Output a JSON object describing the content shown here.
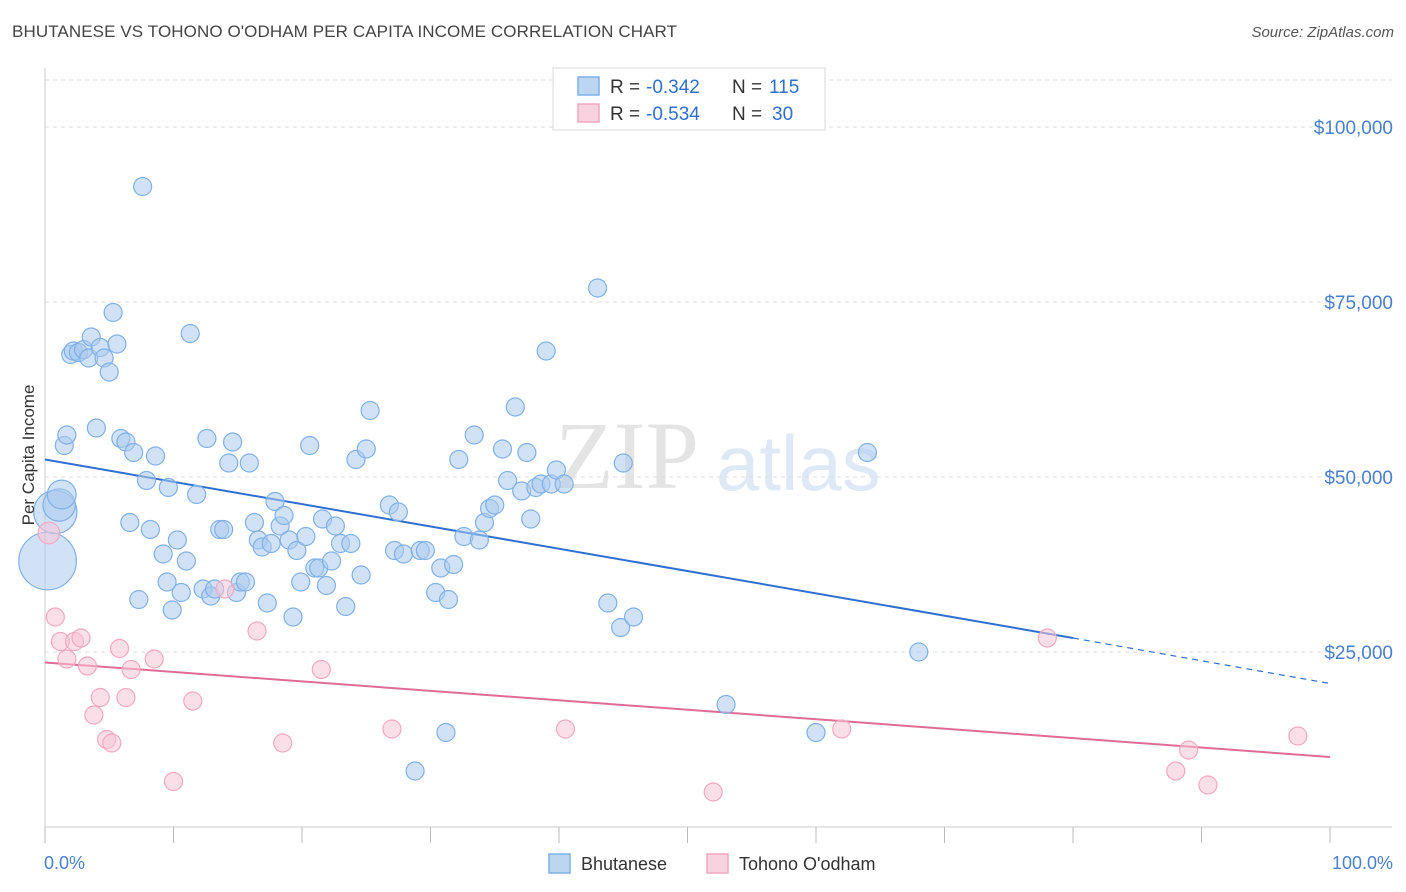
{
  "title": "BHUTANESE VS TOHONO O'ODHAM PER CAPITA INCOME CORRELATION CHART",
  "source": "Source: ZipAtlas.com",
  "watermark": {
    "zip": "ZIP",
    "atlas": "atlas"
  },
  "legend": {
    "r_label": "R =",
    "n_label": "N =",
    "rows": [
      {
        "series": "Bhutanese",
        "r": "-0.342",
        "n": "115"
      },
      {
        "series": "Tohono O'odham",
        "r": "-0.534",
        "n": "30"
      }
    ]
  },
  "chart_data": {
    "type": "scatter",
    "title": "BHUTANESE VS TOHONO O'ODHAM PER CAPITA INCOME CORRELATION CHART",
    "xlabel": "",
    "ylabel": "Per Capita Income",
    "xlim": [
      0,
      100
    ],
    "ylim": [
      0,
      105000
    ],
    "x_tick_labels": [
      "0.0%",
      "100.0%"
    ],
    "y_ticks": [
      25000,
      50000,
      75000,
      100000
    ],
    "y_tick_labels": [
      "$25,000",
      "$50,000",
      "$75,000",
      "$100,000"
    ],
    "grid": "horizontal dashed",
    "legend_position": "top-center",
    "colors": {
      "Bhutanese": "#7fb0e6",
      "Tohono O'odham": "#f2a7c0",
      "Bhutanese_line": "#2f6fd0",
      "Tohono O'odham_line": "#e06c96"
    },
    "series": [
      {
        "name": "Bhutanese",
        "trend": {
          "x0": 0,
          "y0": 52500,
          "x1": 80,
          "y1": 27000,
          "dashed_to": 100,
          "dashed_y": 20500
        },
        "points": [
          [
            0.2,
            38000,
            32
          ],
          [
            0.8,
            45000,
            24
          ],
          [
            1.1,
            46000,
            18
          ],
          [
            1.3,
            47500,
            16
          ],
          [
            1.5,
            54500,
            10
          ],
          [
            1.7,
            56000,
            10
          ],
          [
            2.0,
            67500,
            10
          ],
          [
            2.2,
            68000,
            10
          ],
          [
            2.6,
            67800,
            10
          ],
          [
            3.0,
            68200,
            10
          ],
          [
            3.4,
            67000,
            10
          ],
          [
            3.6,
            70000,
            10
          ],
          [
            4.0,
            57000,
            10
          ],
          [
            4.3,
            68500,
            10
          ],
          [
            4.6,
            67000,
            10
          ],
          [
            5.0,
            65000,
            10
          ],
          [
            5.3,
            73500,
            10
          ],
          [
            5.6,
            69000,
            10
          ],
          [
            5.9,
            55500,
            10
          ],
          [
            6.3,
            55000,
            10
          ],
          [
            6.6,
            43500,
            10
          ],
          [
            6.9,
            53500,
            10
          ],
          [
            7.3,
            32500,
            10
          ],
          [
            7.6,
            91500,
            10
          ],
          [
            7.9,
            49500,
            10
          ],
          [
            8.2,
            42500,
            10
          ],
          [
            8.6,
            53000,
            10
          ],
          [
            9.2,
            39000,
            10
          ],
          [
            9.6,
            48500,
            10
          ],
          [
            9.9,
            31000,
            10
          ],
          [
            10.3,
            41000,
            10
          ],
          [
            10.6,
            33500,
            10
          ],
          [
            11.0,
            38000,
            10
          ],
          [
            11.3,
            70500,
            10
          ],
          [
            11.8,
            47500,
            10
          ],
          [
            12.3,
            34000,
            10
          ],
          [
            12.6,
            55500,
            10
          ],
          [
            12.9,
            33000,
            10
          ],
          [
            13.2,
            34000,
            10
          ],
          [
            13.6,
            42500,
            10
          ],
          [
            13.9,
            42500,
            10
          ],
          [
            14.3,
            52000,
            10
          ],
          [
            14.6,
            55000,
            10
          ],
          [
            14.9,
            33500,
            10
          ],
          [
            15.2,
            35000,
            10
          ],
          [
            15.6,
            35000,
            10
          ],
          [
            15.9,
            52000,
            10
          ],
          [
            16.3,
            43500,
            10
          ],
          [
            16.6,
            41000,
            10
          ],
          [
            16.9,
            40000,
            10
          ],
          [
            17.3,
            32000,
            10
          ],
          [
            17.6,
            40500,
            10
          ],
          [
            17.9,
            46500,
            10
          ],
          [
            18.3,
            43000,
            10
          ],
          [
            18.6,
            44500,
            10
          ],
          [
            19.0,
            41000,
            10
          ],
          [
            19.3,
            30000,
            10
          ],
          [
            19.6,
            39500,
            10
          ],
          [
            19.9,
            35000,
            10
          ],
          [
            20.3,
            41500,
            10
          ],
          [
            20.6,
            54500,
            10
          ],
          [
            21.0,
            37000,
            10
          ],
          [
            21.3,
            37000,
            10
          ],
          [
            21.6,
            44000,
            10
          ],
          [
            21.9,
            34500,
            10
          ],
          [
            22.3,
            38000,
            10
          ],
          [
            22.6,
            43000,
            10
          ],
          [
            23.0,
            40500,
            10
          ],
          [
            23.4,
            31500,
            10
          ],
          [
            23.8,
            40500,
            10
          ],
          [
            24.2,
            52500,
            10
          ],
          [
            24.6,
            36000,
            10
          ],
          [
            25.0,
            54000,
            10
          ],
          [
            25.3,
            59500,
            10
          ],
          [
            26.8,
            46000,
            10
          ],
          [
            27.2,
            39500,
            10
          ],
          [
            27.5,
            45000,
            10
          ],
          [
            27.9,
            39000,
            10
          ],
          [
            28.8,
            8000,
            10
          ],
          [
            29.2,
            39500,
            10
          ],
          [
            29.6,
            39500,
            10
          ],
          [
            30.4,
            33500,
            10
          ],
          [
            30.8,
            37000,
            10
          ],
          [
            31.4,
            32500,
            10
          ],
          [
            31.8,
            37500,
            10
          ],
          [
            31.2,
            13500,
            10
          ],
          [
            32.2,
            52500,
            10
          ],
          [
            32.6,
            41500,
            10
          ],
          [
            33.4,
            56000,
            10
          ],
          [
            33.8,
            41000,
            10
          ],
          [
            34.2,
            43500,
            10
          ],
          [
            34.6,
            45500,
            10
          ],
          [
            35.0,
            46000,
            10
          ],
          [
            35.6,
            54000,
            10
          ],
          [
            36.0,
            49500,
            10
          ],
          [
            36.6,
            60000,
            10
          ],
          [
            37.1,
            48000,
            10
          ],
          [
            37.5,
            53500,
            10
          ],
          [
            37.8,
            44000,
            10
          ],
          [
            38.2,
            48500,
            10
          ],
          [
            38.6,
            49000,
            10
          ],
          [
            39.0,
            68000,
            10
          ],
          [
            39.4,
            49000,
            10
          ],
          [
            39.8,
            51000,
            10
          ],
          [
            40.4,
            49000,
            10
          ],
          [
            43.0,
            77000,
            10
          ],
          [
            43.8,
            32000,
            10
          ],
          [
            44.8,
            28500,
            10
          ],
          [
            45.8,
            30000,
            10
          ],
          [
            45.0,
            52000,
            10
          ],
          [
            53.0,
            17500,
            10
          ],
          [
            60.0,
            13500,
            10
          ],
          [
            64.0,
            53500,
            10
          ],
          [
            68.0,
            25000,
            10
          ],
          [
            9.5,
            35000,
            10
          ]
        ]
      },
      {
        "name": "Tohono O'odham",
        "trend": {
          "x0": 0,
          "y0": 23500,
          "x1": 100,
          "y1": 10000
        },
        "points": [
          [
            0.3,
            42000,
            12
          ],
          [
            0.8,
            30000,
            10
          ],
          [
            1.2,
            26500,
            10
          ],
          [
            1.7,
            24000,
            10
          ],
          [
            2.3,
            26500,
            10
          ],
          [
            2.8,
            27000,
            10
          ],
          [
            3.3,
            23000,
            10
          ],
          [
            3.8,
            16000,
            10
          ],
          [
            4.3,
            18500,
            10
          ],
          [
            4.8,
            12500,
            10
          ],
          [
            5.2,
            12000,
            10
          ],
          [
            5.8,
            25500,
            10
          ],
          [
            6.3,
            18500,
            10
          ],
          [
            6.7,
            22500,
            10
          ],
          [
            8.5,
            24000,
            10
          ],
          [
            10.0,
            6500,
            10
          ],
          [
            11.5,
            18000,
            10
          ],
          [
            14.0,
            34000,
            10
          ],
          [
            16.5,
            28000,
            10
          ],
          [
            18.5,
            12000,
            10
          ],
          [
            21.5,
            22500,
            10
          ],
          [
            27.0,
            14000,
            10
          ],
          [
            40.5,
            14000,
            10
          ],
          [
            52.0,
            5000,
            10
          ],
          [
            62.0,
            14000,
            10
          ],
          [
            78.0,
            27000,
            10
          ],
          [
            88.0,
            8000,
            10
          ],
          [
            89.0,
            11000,
            10
          ],
          [
            90.5,
            6000,
            10
          ],
          [
            97.5,
            13000,
            10
          ]
        ]
      }
    ]
  },
  "bottom_legend": [
    "Bhutanese",
    "Tohono O'odham"
  ]
}
